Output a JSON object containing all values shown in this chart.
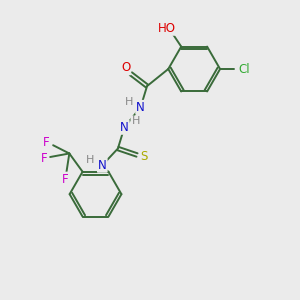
{
  "bg_color": "#ebebeb",
  "bond_color": "#3a6b3a",
  "atom_colors": {
    "O": "#dd0000",
    "N": "#1111cc",
    "S": "#aaaa00",
    "Cl": "#33aa33",
    "F": "#cc00cc",
    "H": "#888888",
    "C": "#3a6b3a"
  },
  "figsize": [
    3.0,
    3.0
  ],
  "dpi": 100
}
